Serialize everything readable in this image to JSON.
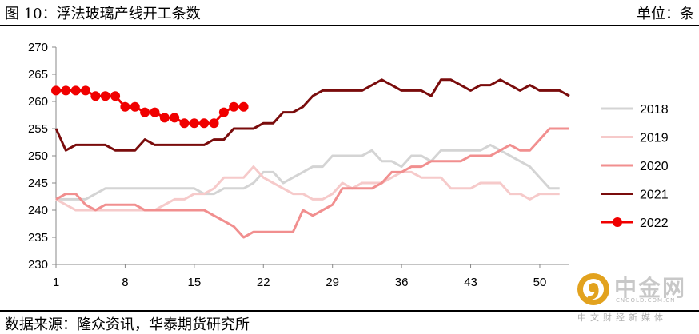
{
  "header": {
    "title": "图 10：浮法玻璃产线开工条数",
    "unit": "单位：条"
  },
  "footer": {
    "source": "数据来源：隆众资讯，华泰期货研究所"
  },
  "watermark": {
    "name": "中金网",
    "domain": "CNGOLD.COM.CN",
    "sub": "中文财经新媒体",
    "colors": {
      "logo": "#e2a21e",
      "text": "#c8c8c8"
    }
  },
  "chart_data": {
    "type": "line",
    "title": "",
    "xlabel": "",
    "ylabel": "",
    "xlim": [
      1,
      53
    ],
    "ylim": [
      230,
      270
    ],
    "xticks": [
      1,
      8,
      15,
      22,
      29,
      36,
      43,
      50
    ],
    "yticks": [
      230,
      235,
      240,
      245,
      250,
      255,
      260,
      265,
      270
    ],
    "grid": false,
    "legend_position": "right",
    "series": [
      {
        "name": "2018",
        "color": "#d4d4d4",
        "marker": "none",
        "values": [
          242,
          242,
          242,
          242,
          243,
          244,
          244,
          244,
          244,
          244,
          244,
          244,
          244,
          244,
          244,
          243,
          243,
          244,
          244,
          244,
          245,
          247,
          247,
          245,
          246,
          247,
          248,
          248,
          250,
          250,
          250,
          250,
          251,
          249,
          249,
          248,
          250,
          250,
          249,
          251,
          251,
          251,
          251,
          251,
          252,
          251,
          250,
          249,
          248,
          246,
          244,
          244
        ]
      },
      {
        "name": "2019",
        "color": "#f6caca",
        "marker": "none",
        "values": [
          242,
          241,
          240,
          240,
          240,
          240,
          240,
          240,
          240,
          240,
          240,
          241,
          242,
          242,
          243,
          243,
          244,
          246,
          246,
          246,
          248,
          246,
          245,
          244,
          243,
          243,
          242,
          242,
          243,
          245,
          244,
          245,
          245,
          245,
          246,
          247,
          247,
          246,
          246,
          246,
          244,
          244,
          244,
          245,
          245,
          245,
          243,
          243,
          242,
          243,
          243,
          243
        ]
      },
      {
        "name": "2020",
        "color": "#f18f8f",
        "marker": "none",
        "values": [
          242,
          243,
          243,
          241,
          240,
          241,
          241,
          241,
          241,
          240,
          240,
          240,
          240,
          240,
          240,
          240,
          239,
          238,
          237,
          235,
          236,
          236,
          236,
          236,
          236,
          240,
          239,
          240,
          241,
          244,
          244,
          244,
          244,
          245,
          247,
          247,
          248,
          248,
          249,
          249,
          249,
          249,
          250,
          250,
          250,
          251,
          252,
          251,
          251,
          253,
          255,
          255,
          255
        ]
      },
      {
        "name": "2021",
        "color": "#7a0c0c",
        "marker": "none",
        "values": [
          255,
          251,
          252,
          252,
          252,
          252,
          251,
          251,
          251,
          253,
          252,
          252,
          252,
          252,
          252,
          252,
          253,
          253,
          255,
          255,
          255,
          256,
          256,
          258,
          258,
          259,
          261,
          262,
          262,
          262,
          262,
          262,
          263,
          264,
          263,
          262,
          262,
          262,
          261,
          264,
          264,
          263,
          262,
          263,
          263,
          264,
          263,
          262,
          263,
          262,
          262,
          262,
          261
        ]
      },
      {
        "name": "2022",
        "color": "#f00000",
        "marker": "circle",
        "values": [
          262,
          262,
          262,
          262,
          261,
          261,
          261,
          259,
          259,
          258,
          258,
          257,
          257,
          256,
          256,
          256,
          256,
          258,
          259,
          259
        ]
      }
    ]
  }
}
